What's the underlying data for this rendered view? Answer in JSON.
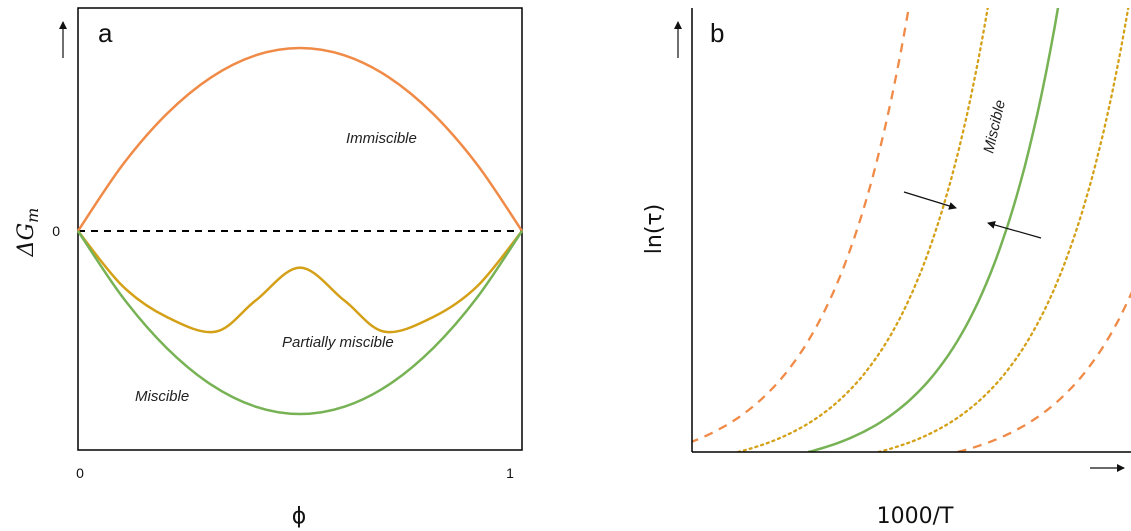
{
  "colors": {
    "immiscible": "#F08A47",
    "partially": "#D4A017",
    "miscible": "#77B255",
    "axis": "#000000"
  },
  "chart_data": [
    {
      "panel": "a",
      "type": "line",
      "xlabel": "ϕ",
      "ylabel": "ΔG",
      "ylabel_sub": "m",
      "xticks": [
        "0",
        "1"
      ],
      "yticks": [
        "0"
      ],
      "xlim": [
        0,
        1
      ],
      "ylim": [
        -1.2,
        1.2
      ],
      "series": [
        {
          "name": "Immiscible",
          "color": "#F08A47",
          "x": [
            0,
            0.1,
            0.2,
            0.3,
            0.4,
            0.5,
            0.6,
            0.7,
            0.8,
            0.9,
            1
          ],
          "y": [
            0,
            0.36,
            0.64,
            0.84,
            0.96,
            1.0,
            0.96,
            0.84,
            0.64,
            0.36,
            0
          ]
        },
        {
          "name": "Partially miscible",
          "color": "#D4A017",
          "x": [
            0,
            0.1,
            0.2,
            0.31,
            0.4,
            0.5,
            0.6,
            0.69,
            0.8,
            0.9,
            1
          ],
          "y": [
            0,
            -0.3,
            -0.47,
            -0.55,
            -0.38,
            -0.2,
            -0.38,
            -0.55,
            -0.47,
            -0.3,
            0
          ]
        },
        {
          "name": "Miscible",
          "color": "#77B255",
          "x": [
            0,
            0.1,
            0.2,
            0.3,
            0.4,
            0.5,
            0.6,
            0.7,
            0.8,
            0.9,
            1
          ],
          "y": [
            0,
            -0.36,
            -0.64,
            -0.84,
            -0.96,
            -1.0,
            -0.96,
            -0.84,
            -0.64,
            -0.36,
            0
          ]
        }
      ],
      "reference_line": {
        "y": 0,
        "style": "dashed"
      },
      "annotations": [
        "Immiscible",
        "Partially miscible",
        "Miscible"
      ]
    },
    {
      "panel": "b",
      "type": "line",
      "xlabel": "1000/T",
      "ylabel": "ln(τ)",
      "series": [
        {
          "color": "#F08A47",
          "style": "dashed",
          "shift": -0.34
        },
        {
          "color": "#D4A017",
          "style": "dotted",
          "shift": -0.16
        },
        {
          "name": "Miscible",
          "color": "#77B255",
          "style": "solid",
          "shift": 0
        },
        {
          "color": "#D4A017",
          "style": "dotted",
          "shift": 0.16
        },
        {
          "color": "#F08A47",
          "style": "dashed",
          "shift": 0.34
        }
      ],
      "annotations": [
        "Miscible"
      ]
    }
  ]
}
